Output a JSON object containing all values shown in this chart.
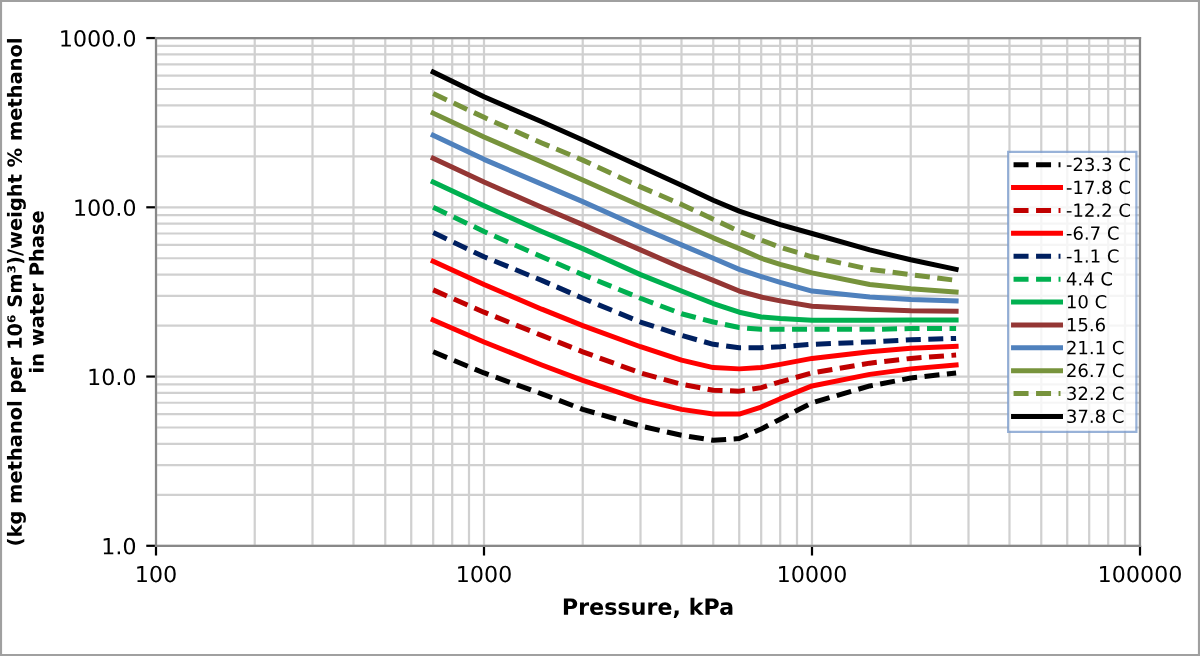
{
  "chart_data": {
    "type": "line",
    "xlabel": "Pressure, kPa",
    "ylabel": "(kg methanol per 10⁶ Sm³)/weight % methanol\nin water Phase",
    "log": "xy",
    "grid": true,
    "legend": "right",
    "marker": "none",
    "xlim": [
      100,
      100000
    ],
    "xticks": [
      100,
      1000,
      10000,
      100000
    ],
    "ylim": [
      1,
      1000
    ],
    "yticks": [
      {
        "value": 1,
        "label": "1.0"
      },
      {
        "value": 10,
        "label": "10.0"
      },
      {
        "value": 100,
        "label": "100.0"
      },
      {
        "value": 1000,
        "label": "1000.0"
      }
    ],
    "x": [
      700,
      1000,
      1500,
      2000,
      3000,
      4000,
      5000,
      6000,
      7000,
      8000,
      10000,
      15000,
      20000,
      27500
    ],
    "series": [
      {
        "name": "-23.3 C",
        "color": "#000000",
        "line_style": "dashed",
        "values": [
          14,
          10.5,
          7.9,
          6.4,
          5.1,
          4.5,
          4.2,
          4.3,
          4.9,
          5.6,
          7.0,
          8.8,
          9.8,
          10.5
        ]
      },
      {
        "name": "-17.8 C",
        "color": "#ff0000",
        "line_style": "solid",
        "values": [
          21.6,
          16,
          11.7,
          9.5,
          7.3,
          6.4,
          6.0,
          6.0,
          6.6,
          7.4,
          8.8,
          10.3,
          11.1,
          11.7
        ]
      },
      {
        "name": "-12.2 C",
        "color": "#c00000",
        "line_style": "dashed",
        "values": [
          32.5,
          24,
          17.5,
          14,
          10.5,
          9,
          8.3,
          8.2,
          8.6,
          9.3,
          10.5,
          12,
          12.8,
          13.4
        ]
      },
      {
        "name": "-6.7 C",
        "color": "#ff0000",
        "line_style": "solid",
        "values": [
          48,
          35,
          25,
          20,
          15,
          12.5,
          11.3,
          11.1,
          11.3,
          11.8,
          12.8,
          14,
          14.7,
          15.1
        ]
      },
      {
        "name": "-1.1 C",
        "color": "#002060",
        "line_style": "dashed",
        "values": [
          71,
          51,
          37,
          29,
          21,
          17.5,
          15.5,
          14.8,
          14.8,
          15,
          15.5,
          16,
          16.5,
          16.8
        ]
      },
      {
        "name": "4.4 C",
        "color": "#00b050",
        "line_style": "dashed",
        "values": [
          100,
          72,
          51,
          40,
          29,
          23.5,
          21,
          19.5,
          19,
          19,
          19,
          19,
          19.2,
          19.2
        ]
      },
      {
        "name": "10 C",
        "color": "#00b050",
        "line_style": "solid",
        "values": [
          141,
          102,
          72,
          57,
          40,
          32,
          27,
          24,
          22.5,
          22,
          21.5,
          21.5,
          21.6,
          21.6
        ]
      },
      {
        "name": "15.6",
        "color": "#943634",
        "line_style": "solid",
        "values": [
          195,
          141,
          100,
          79,
          56,
          44,
          37,
          32,
          29.5,
          28,
          26,
          25,
          24.5,
          24.3
        ]
      },
      {
        "name": "21.1 C",
        "color": "#4f81bd",
        "line_style": "solid",
        "values": [
          266,
          192,
          137,
          108,
          76,
          60,
          50,
          43,
          39,
          36,
          32,
          29.5,
          28.5,
          28
        ]
      },
      {
        "name": "26.7 C",
        "color": "#77933c",
        "line_style": "solid",
        "values": [
          360,
          260,
          185,
          145,
          102,
          80,
          66,
          57,
          50,
          46,
          41,
          35,
          33,
          31.6
        ]
      },
      {
        "name": "32.2 C",
        "color": "#77933c",
        "line_style": "dashed",
        "values": [
          470,
          340,
          240,
          190,
          132,
          104,
          85,
          72,
          64,
          58,
          51,
          43,
          40,
          37
        ]
      },
      {
        "name": "37.8 C",
        "color": "#000000",
        "line_style": "solid",
        "values": [
          630,
          450,
          320,
          250,
          174,
          135,
          110,
          95,
          86,
          79,
          70,
          56,
          49,
          43
        ]
      }
    ]
  }
}
